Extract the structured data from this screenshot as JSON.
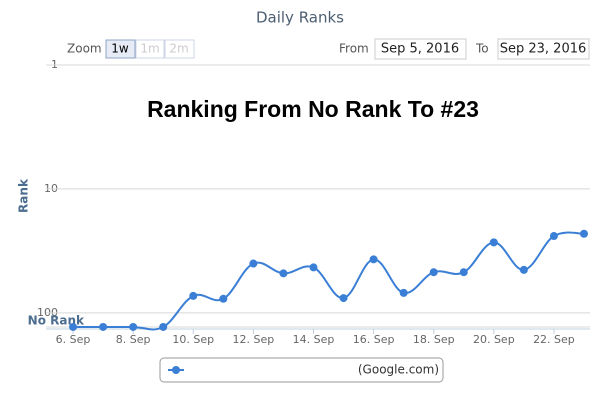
{
  "controls": {
    "zoom_label": "Zoom",
    "zoom_buttons": [
      "1w",
      "1m",
      "2m"
    ],
    "from_label": "From",
    "from_date": "Sep 5, 2016",
    "to_label": "To",
    "to_date": "Sep 23, 2016"
  },
  "chart_data": {
    "type": "line",
    "title": "Daily Ranks",
    "annotation": "Ranking From No Rank To #23",
    "y_label": "Rank",
    "log_scale": true,
    "y_reversed": true,
    "grid": true,
    "x": [
      6,
      7,
      8,
      9,
      10,
      11,
      12,
      13,
      14,
      15,
      16,
      17,
      18,
      19,
      20,
      21,
      22,
      23
    ],
    "xlim": [
      5.1,
      23.2
    ],
    "xticks": [
      {
        "value": 6,
        "label": "6. Sep"
      },
      {
        "value": 8,
        "label": "8. Sep"
      },
      {
        "value": 10,
        "label": "10. Sep"
      },
      {
        "value": 12,
        "label": "12. Sep"
      },
      {
        "value": 14,
        "label": "14. Sep"
      },
      {
        "value": 16,
        "label": "16. Sep"
      },
      {
        "value": 18,
        "label": "18. Sep"
      },
      {
        "value": 20,
        "label": "20. Sep"
      },
      {
        "value": 22,
        "label": "22. Sep"
      }
    ],
    "ylim": [
      1,
      135
    ],
    "yticks": [
      1,
      10,
      100,
      {
        "value": 130,
        "label": "No Rank"
      }
    ],
    "series": [
      {
        "name": "(Google.com)",
        "color": "#3a7fd5",
        "values": [
          130,
          130,
          130,
          130,
          73,
          77,
          40,
          48,
          43,
          76,
          37,
          69,
          47,
          47,
          27,
          45,
          24,
          23
        ]
      }
    ]
  }
}
